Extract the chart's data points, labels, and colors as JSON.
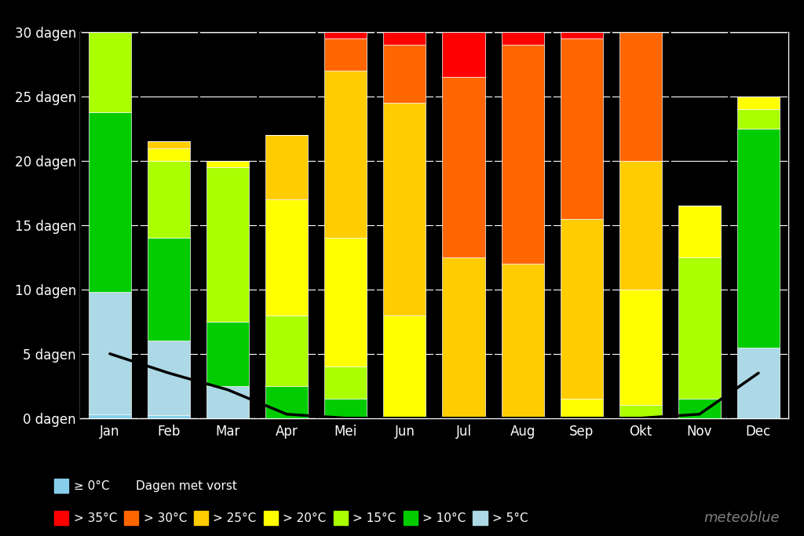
{
  "months": [
    "Jan",
    "Feb",
    "Mar",
    "Apr",
    "Mei",
    "Jun",
    "Jul",
    "Aug",
    "Sep",
    "Okt",
    "Nov",
    "Dec"
  ],
  "segments": {
    "frost": [
      0.3,
      0.2,
      0.0,
      0.0,
      0.0,
      0.0,
      0.0,
      0.0,
      0.0,
      0.0,
      0.0,
      0.0
    ],
    "gt5": [
      9.5,
      5.8,
      2.5,
      0.0,
      0.0,
      0.0,
      0.0,
      0.0,
      0.0,
      0.0,
      0.0,
      5.5
    ],
    "gt10": [
      14.0,
      8.0,
      5.0,
      2.5,
      1.5,
      0.0,
      0.0,
      0.0,
      0.0,
      0.0,
      1.5,
      17.0
    ],
    "gt15": [
      6.2,
      6.0,
      12.0,
      5.5,
      2.5,
      0.0,
      0.0,
      0.0,
      0.0,
      1.0,
      11.0,
      1.5
    ],
    "gt20": [
      0.0,
      1.0,
      0.5,
      9.0,
      10.0,
      8.0,
      0.0,
      0.0,
      1.5,
      9.0,
      4.0,
      1.0
    ],
    "gt25": [
      0.0,
      0.5,
      0.0,
      5.0,
      13.0,
      16.5,
      12.5,
      12.0,
      14.0,
      10.0,
      0.0,
      0.0
    ],
    "gt30": [
      0.0,
      0.0,
      0.0,
      0.0,
      2.5,
      4.5,
      14.0,
      17.0,
      14.0,
      10.0,
      0.0,
      0.0
    ],
    "gt35": [
      0.0,
      0.0,
      0.0,
      0.0,
      0.5,
      1.0,
      3.5,
      1.0,
      0.5,
      0.0,
      0.0,
      0.0
    ]
  },
  "frost_line": [
    5.0,
    3.5,
    2.2,
    0.3,
    0.0,
    0.0,
    0.0,
    0.0,
    0.0,
    0.0,
    0.3,
    3.5
  ],
  "colors": {
    "frost": "#87ceeb",
    "gt5": "#add8e6",
    "gt10": "#00cc00",
    "gt15": "#aaff00",
    "gt20": "#ffff00",
    "gt25": "#ffcc00",
    "gt30": "#ff6600",
    "gt35": "#ff0000"
  },
  "yticks": [
    0,
    5,
    10,
    15,
    20,
    25,
    30
  ],
  "ylabels": [
    "0 dagen",
    "5 dagen",
    "10 dagen",
    "15 dagen",
    "20 dagen",
    "25 dagen",
    "30 dagen"
  ],
  "ylim": [
    0,
    30
  ],
  "background_color": "#000000",
  "plot_bg_color": "#000000",
  "grid_color": "#ffffff",
  "watermark": "meteoblue",
  "legend_labels": [
    "> 35°C",
    "> 30°C",
    "> 25°C",
    "> 20°C",
    "> 15°C",
    "> 10°C",
    "> 5°C",
    "≥ 0°C"
  ],
  "legend_colors": [
    "#ff0000",
    "#ff6600",
    "#ffcc00",
    "#ffff00",
    "#aaff00",
    "#00cc00",
    "#add8e6",
    "#87ceeb"
  ],
  "frost_line_label": "Dagen met vorst"
}
